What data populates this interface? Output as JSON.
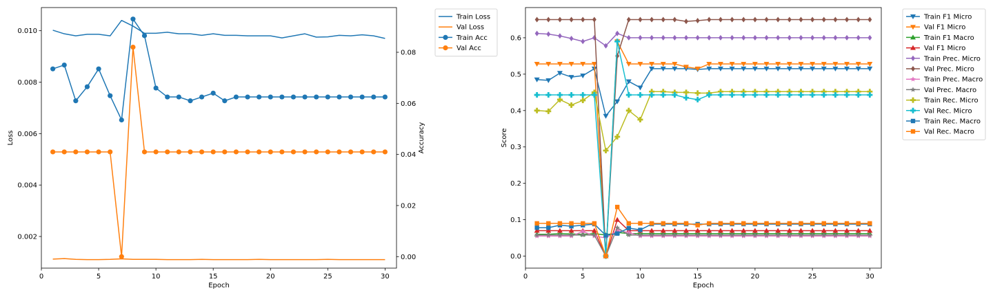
{
  "chart_data": [
    {
      "type": "line",
      "xlabel": "Epoch",
      "ylabel": "Loss",
      "y2label": "Accuracy",
      "x": [
        1,
        2,
        3,
        4,
        5,
        6,
        7,
        8,
        9,
        10,
        11,
        12,
        13,
        14,
        15,
        16,
        17,
        18,
        19,
        20,
        21,
        22,
        23,
        24,
        25,
        26,
        27,
        28,
        29,
        30
      ],
      "xlim": [
        0,
        31
      ],
      "xticks": [
        0,
        5,
        10,
        15,
        20,
        25,
        30
      ],
      "ylim": [
        0.00077,
        0.0109
      ],
      "yticks": [
        0.002,
        0.004,
        0.006,
        0.008,
        0.01
      ],
      "y2lim": [
        -0.0045,
        0.0975
      ],
      "y2ticks": [
        0.0,
        0.02,
        0.04,
        0.06,
        0.08
      ],
      "legend": "outside-top-right",
      "series": [
        {
          "name": "Train Loss",
          "axis": "left",
          "color": "#1f77b4",
          "marker": "none",
          "values": [
            0.01002,
            0.00988,
            0.0098,
            0.00986,
            0.00986,
            0.0098,
            0.0104,
            0.01018,
            0.0099,
            0.0099,
            0.00994,
            0.00988,
            0.00988,
            0.00982,
            0.00988,
            0.00982,
            0.00982,
            0.0098,
            0.0098,
            0.0098,
            0.00972,
            0.0098,
            0.00988,
            0.00975,
            0.00976,
            0.00982,
            0.0098,
            0.00984,
            0.0098,
            0.0097
          ]
        },
        {
          "name": "Val Loss",
          "axis": "left",
          "color": "#ff7f0e",
          "marker": "none",
          "values": [
            0.00112,
            0.00114,
            0.00111,
            0.0011,
            0.0011,
            0.00111,
            0.00113,
            0.00111,
            0.00111,
            0.00111,
            0.0011,
            0.0011,
            0.0011,
            0.00111,
            0.0011,
            0.0011,
            0.0011,
            0.0011,
            0.00111,
            0.0011,
            0.0011,
            0.0011,
            0.0011,
            0.0011,
            0.00111,
            0.0011,
            0.0011,
            0.0011,
            0.0011,
            0.0011
          ]
        },
        {
          "name": "Train Acc",
          "axis": "right",
          "color": "#1f77b4",
          "marker": "circle",
          "values": [
            0.0735,
            0.075,
            0.061,
            0.0665,
            0.0735,
            0.063,
            0.0535,
            0.093,
            0.0865,
            0.066,
            0.0625,
            0.0625,
            0.061,
            0.0625,
            0.064,
            0.061,
            0.0625,
            0.0625,
            0.0625,
            0.0625,
            0.0625,
            0.0625,
            0.0625,
            0.0625,
            0.0625,
            0.0625,
            0.0625,
            0.0625,
            0.0625,
            0.0625
          ]
        },
        {
          "name": "Val Acc",
          "axis": "right",
          "color": "#ff7f0e",
          "marker": "circle",
          "values": [
            0.041,
            0.041,
            0.041,
            0.041,
            0.041,
            0.041,
            0.0,
            0.082,
            0.041,
            0.041,
            0.041,
            0.041,
            0.041,
            0.041,
            0.041,
            0.041,
            0.041,
            0.041,
            0.041,
            0.041,
            0.041,
            0.041,
            0.041,
            0.041,
            0.041,
            0.041,
            0.041,
            0.041,
            0.041,
            0.041
          ]
        }
      ]
    },
    {
      "type": "line",
      "xlabel": "Epoch",
      "ylabel": "Score",
      "x": [
        1,
        2,
        3,
        4,
        5,
        6,
        7,
        8,
        9,
        10,
        11,
        12,
        13,
        14,
        15,
        16,
        17,
        18,
        19,
        20,
        21,
        22,
        23,
        24,
        25,
        26,
        27,
        28,
        29,
        30
      ],
      "xlim": [
        0,
        31
      ],
      "xticks": [
        0,
        5,
        10,
        15,
        20,
        25,
        30
      ],
      "ylim": [
        -0.033,
        0.683
      ],
      "yticks": [
        0.0,
        0.1,
        0.2,
        0.3,
        0.4,
        0.5,
        0.6
      ],
      "legend": "outside-top-right",
      "series": [
        {
          "name": "Train F1 Micro",
          "color": "#1f77b4",
          "marker": "triangle-down",
          "values": [
            0.485,
            0.483,
            0.503,
            0.492,
            0.496,
            0.515,
            0.385,
            0.425,
            0.48,
            0.463,
            0.515,
            0.515,
            0.515,
            0.515,
            0.513,
            0.515,
            0.515,
            0.515,
            0.515,
            0.515,
            0.515,
            0.515,
            0.515,
            0.515,
            0.515,
            0.515,
            0.515,
            0.515,
            0.515,
            0.515
          ]
        },
        {
          "name": "Val F1 Micro",
          "color": "#ff7f0e",
          "marker": "triangle-down",
          "values": [
            0.528,
            0.528,
            0.528,
            0.528,
            0.528,
            0.528,
            0.0,
            0.59,
            0.528,
            0.528,
            0.528,
            0.528,
            0.528,
            0.52,
            0.515,
            0.528,
            0.528,
            0.528,
            0.528,
            0.528,
            0.528,
            0.528,
            0.528,
            0.528,
            0.528,
            0.528,
            0.528,
            0.528,
            0.528,
            0.528
          ]
        },
        {
          "name": "Train F1 Macro",
          "color": "#2ca02c",
          "marker": "triangle-up",
          "values": [
            0.06,
            0.06,
            0.062,
            0.061,
            0.06,
            0.062,
            0.058,
            0.065,
            0.062,
            0.062,
            0.062,
            0.062,
            0.062,
            0.062,
            0.062,
            0.062,
            0.062,
            0.062,
            0.062,
            0.062,
            0.062,
            0.062,
            0.062,
            0.062,
            0.062,
            0.062,
            0.062,
            0.062,
            0.062,
            0.062
          ]
        },
        {
          "name": "Val F1 Micro",
          "color": "#d62728",
          "marker": "triangle-up",
          "values": [
            0.07,
            0.07,
            0.07,
            0.07,
            0.07,
            0.07,
            0.0,
            0.1,
            0.07,
            0.07,
            0.07,
            0.07,
            0.07,
            0.07,
            0.07,
            0.07,
            0.07,
            0.07,
            0.07,
            0.07,
            0.07,
            0.07,
            0.07,
            0.07,
            0.07,
            0.07,
            0.07,
            0.07,
            0.07,
            0.07
          ]
        },
        {
          "name": "Train Prec. Micro",
          "color": "#9467bd",
          "marker": "diamond",
          "values": [
            0.612,
            0.61,
            0.605,
            0.598,
            0.59,
            0.6,
            0.578,
            0.612,
            0.6,
            0.6,
            0.6,
            0.6,
            0.6,
            0.6,
            0.6,
            0.6,
            0.6,
            0.6,
            0.6,
            0.6,
            0.6,
            0.6,
            0.6,
            0.6,
            0.6,
            0.6,
            0.6,
            0.6,
            0.6,
            0.6
          ]
        },
        {
          "name": "Val Prec. Micro",
          "color": "#8c564b",
          "marker": "diamond",
          "values": [
            0.65,
            0.65,
            0.65,
            0.65,
            0.65,
            0.65,
            0.0,
            0.55,
            0.65,
            0.65,
            0.65,
            0.65,
            0.65,
            0.645,
            0.647,
            0.65,
            0.65,
            0.65,
            0.65,
            0.65,
            0.65,
            0.65,
            0.65,
            0.65,
            0.65,
            0.65,
            0.65,
            0.65,
            0.65,
            0.65
          ]
        },
        {
          "name": "Train Prec. Macro",
          "color": "#e377c2",
          "marker": "star",
          "values": [
            0.055,
            0.055,
            0.055,
            0.055,
            0.068,
            0.055,
            0.05,
            0.07,
            0.065,
            0.055,
            0.055,
            0.055,
            0.055,
            0.055,
            0.055,
            0.055,
            0.055,
            0.055,
            0.055,
            0.055,
            0.055,
            0.055,
            0.055,
            0.055,
            0.055,
            0.055,
            0.055,
            0.055,
            0.055,
            0.055
          ]
        },
        {
          "name": "Val Prec. Macro",
          "color": "#7f7f7f",
          "marker": "star",
          "values": [
            0.058,
            0.058,
            0.058,
            0.058,
            0.058,
            0.058,
            0.0,
            0.078,
            0.058,
            0.058,
            0.058,
            0.058,
            0.058,
            0.058,
            0.058,
            0.058,
            0.058,
            0.058,
            0.058,
            0.058,
            0.058,
            0.058,
            0.058,
            0.058,
            0.058,
            0.058,
            0.058,
            0.058,
            0.058,
            0.058
          ]
        },
        {
          "name": "Train Rec. Micro",
          "color": "#bcbd22",
          "marker": "plus",
          "values": [
            0.4,
            0.398,
            0.43,
            0.415,
            0.428,
            0.45,
            0.29,
            0.328,
            0.4,
            0.375,
            0.452,
            0.452,
            0.45,
            0.45,
            0.448,
            0.448,
            0.452,
            0.452,
            0.452,
            0.452,
            0.452,
            0.452,
            0.452,
            0.452,
            0.452,
            0.452,
            0.452,
            0.452,
            0.452,
            0.452
          ]
        },
        {
          "name": "Val Rec. Micro",
          "color": "#17becf",
          "marker": "plus",
          "values": [
            0.443,
            0.443,
            0.443,
            0.443,
            0.443,
            0.443,
            0.0,
            0.59,
            0.443,
            0.443,
            0.443,
            0.443,
            0.443,
            0.435,
            0.43,
            0.443,
            0.443,
            0.443,
            0.443,
            0.443,
            0.443,
            0.443,
            0.443,
            0.443,
            0.443,
            0.443,
            0.443,
            0.443,
            0.443,
            0.443
          ]
        },
        {
          "name": "Train Rec. Macro",
          "color": "#1f77b4",
          "marker": "square",
          "values": [
            0.078,
            0.078,
            0.085,
            0.082,
            0.085,
            0.088,
            0.057,
            0.062,
            0.077,
            0.072,
            0.088,
            0.088,
            0.088,
            0.088,
            0.088,
            0.088,
            0.088,
            0.088,
            0.088,
            0.088,
            0.088,
            0.088,
            0.088,
            0.088,
            0.088,
            0.088,
            0.088,
            0.088,
            0.088,
            0.088
          ]
        },
        {
          "name": "Val Rec. Macro",
          "color": "#ff7f0e",
          "marker": "square",
          "values": [
            0.09,
            0.09,
            0.09,
            0.09,
            0.09,
            0.09,
            0.0,
            0.135,
            0.09,
            0.09,
            0.09,
            0.09,
            0.09,
            0.09,
            0.085,
            0.09,
            0.09,
            0.09,
            0.09,
            0.09,
            0.09,
            0.09,
            0.09,
            0.09,
            0.09,
            0.09,
            0.09,
            0.09,
            0.09,
            0.09
          ]
        }
      ]
    }
  ]
}
